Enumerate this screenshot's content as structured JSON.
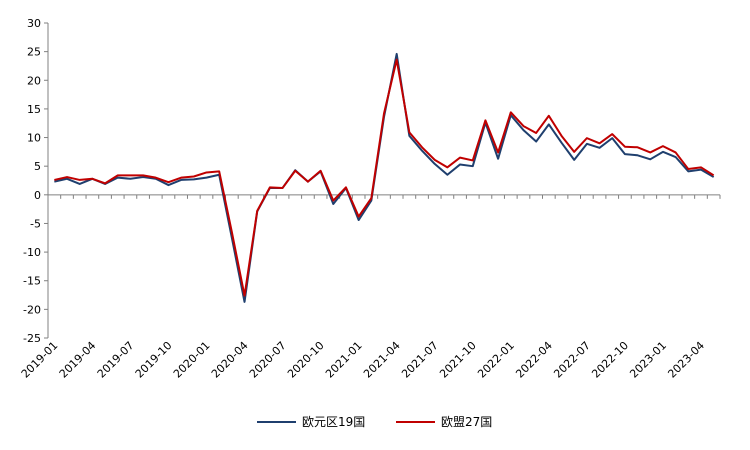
{
  "chart_data": {
    "type": "line",
    "title": "",
    "xlabel": "",
    "ylabel": "",
    "ylim": [
      -25,
      30
    ],
    "yticks": [
      30,
      25,
      20,
      15,
      10,
      5,
      0,
      -5,
      -10,
      -15,
      -20,
      -25
    ],
    "x": [
      "2019-01",
      "2019-02",
      "2019-03",
      "2019-04",
      "2019-05",
      "2019-06",
      "2019-07",
      "2019-08",
      "2019-09",
      "2019-10",
      "2019-11",
      "2019-12",
      "2020-01",
      "2020-02",
      "2020-03",
      "2020-04",
      "2020-05",
      "2020-06",
      "2020-07",
      "2020-08",
      "2020-09",
      "2020-10",
      "2020-11",
      "2020-12",
      "2021-01",
      "2021-02",
      "2021-03",
      "2021-04",
      "2021-05",
      "2021-06",
      "2021-07",
      "2021-08",
      "2021-09",
      "2021-10",
      "2021-11",
      "2021-12",
      "2022-01",
      "2022-02",
      "2022-03",
      "2022-04",
      "2022-05",
      "2022-06",
      "2022-07",
      "2022-08",
      "2022-09",
      "2022-10",
      "2022-11",
      "2022-12",
      "2023-01",
      "2023-02",
      "2023-03",
      "2023-04",
      "2023-05"
    ],
    "xtick_labels": [
      "2019-01",
      "2019-04",
      "2019-07",
      "2019-10",
      "2020-01",
      "2020-04",
      "2020-07",
      "2020-10",
      "2021-01",
      "2021-04",
      "2021-07",
      "2021-10",
      "2022-01",
      "2022-04",
      "2022-07",
      "2022-10",
      "2023-01",
      "2023-04"
    ],
    "grid": false,
    "legend_position": "bottom",
    "series": [
      {
        "name": "欧元区19国",
        "color": "#1f3f6e",
        "values": [
          2.3,
          2.8,
          1.9,
          2.8,
          1.9,
          3.0,
          2.8,
          3.1,
          2.8,
          1.7,
          2.6,
          2.7,
          3.0,
          3.5,
          -7.5,
          -18.7,
          -2.9,
          1.2,
          1.2,
          4.3,
          2.3,
          4.1,
          -1.6,
          1.2,
          -4.4,
          -1.0,
          13.6,
          24.6,
          10.3,
          7.7,
          5.4,
          3.5,
          5.3,
          5.0,
          12.6,
          6.3,
          13.9,
          11.3,
          9.3,
          12.3,
          9.1,
          6.1,
          8.9,
          8.2,
          9.9,
          7.1,
          6.9,
          6.2,
          7.5,
          6.6,
          4.1,
          4.4,
          3.1
        ]
      },
      {
        "name": "欧盟27国",
        "color": "#c00000",
        "values": [
          2.6,
          3.1,
          2.6,
          2.8,
          2.0,
          3.4,
          3.4,
          3.4,
          3.0,
          2.2,
          3.0,
          3.2,
          3.9,
          4.1,
          -6.5,
          -17.6,
          -2.8,
          1.3,
          1.2,
          4.2,
          2.3,
          4.2,
          -1.0,
          1.3,
          -3.8,
          -0.6,
          14.2,
          23.6,
          10.9,
          8.3,
          6.1,
          4.8,
          6.5,
          6.0,
          13.0,
          7.4,
          14.4,
          12.0,
          10.8,
          13.8,
          10.3,
          7.5,
          9.9,
          9.0,
          10.6,
          8.4,
          8.3,
          7.4,
          8.5,
          7.4,
          4.5,
          4.8,
          3.4
        ]
      }
    ]
  }
}
